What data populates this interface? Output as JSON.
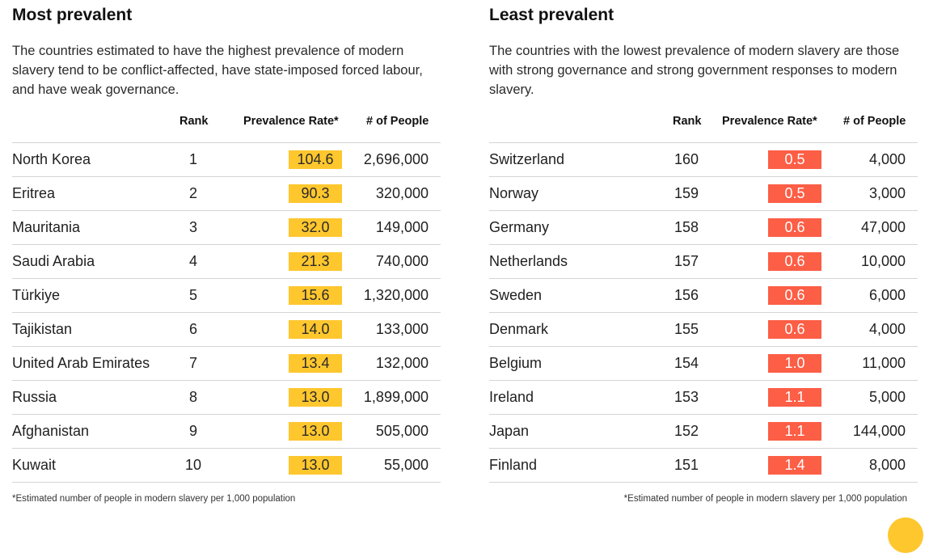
{
  "left_panel": {
    "title": "Most prevalent",
    "description": "The countries estimated to have the highest prevalence of modern slavery tend to be conflict-affected, have state-imposed forced labour, and have weak governance.",
    "headers": {
      "rank": "Rank",
      "rate": "Prevalence Rate*",
      "people": "# of People"
    },
    "rows": [
      {
        "country": "North Korea",
        "rank": "1",
        "rate": "104.6",
        "people": "2,696,000"
      },
      {
        "country": "Eritrea",
        "rank": "2",
        "rate": "90.3",
        "people": "320,000"
      },
      {
        "country": "Mauritania",
        "rank": "3",
        "rate": "32.0",
        "people": "149,000"
      },
      {
        "country": "Saudi Arabia",
        "rank": "4",
        "rate": "21.3",
        "people": "740,000"
      },
      {
        "country": "Türkiye",
        "rank": "5",
        "rate": "15.6",
        "people": "1,320,000"
      },
      {
        "country": "Tajikistan",
        "rank": "6",
        "rate": "14.0",
        "people": "133,000"
      },
      {
        "country": "United Arab Emirates",
        "rank": "7",
        "rate": "13.4",
        "people": "132,000"
      },
      {
        "country": "Russia",
        "rank": "8",
        "rate": "13.0",
        "people": "1,899,000"
      },
      {
        "country": "Afghanistan",
        "rank": "9",
        "rate": "13.0",
        "people": "505,000"
      },
      {
        "country": "Kuwait",
        "rank": "10",
        "rate": "13.0",
        "people": "55,000"
      }
    ],
    "footnote": "*Estimated number of people in modern slavery per 1,000 population",
    "highlight_color": "#fec72e"
  },
  "right_panel": {
    "title": "Least prevalent",
    "description": "The countries with the lowest prevalence of modern slavery are those with strong governance and strong government responses to modern slavery.",
    "headers": {
      "rank": "Rank",
      "rate": "Prevalence Rate*",
      "people": "# of People"
    },
    "rows": [
      {
        "country": "Switzerland",
        "rank": "160",
        "rate": "0.5",
        "people": "4,000"
      },
      {
        "country": "Norway",
        "rank": "159",
        "rate": "0.5",
        "people": "3,000"
      },
      {
        "country": "Germany",
        "rank": "158",
        "rate": "0.6",
        "people": "47,000"
      },
      {
        "country": "Netherlands",
        "rank": "157",
        "rate": "0.6",
        "people": "10,000"
      },
      {
        "country": "Sweden",
        "rank": "156",
        "rate": "0.6",
        "people": "6,000"
      },
      {
        "country": "Denmark",
        "rank": "155",
        "rate": "0.6",
        "people": "4,000"
      },
      {
        "country": "Belgium",
        "rank": "154",
        "rate": "1.0",
        "people": "11,000"
      },
      {
        "country": "Ireland",
        "rank": "153",
        "rate": "1.1",
        "people": "5,000"
      },
      {
        "country": "Japan",
        "rank": "152",
        "rate": "1.1",
        "people": "144,000"
      },
      {
        "country": "Finland",
        "rank": "151",
        "rate": "1.4",
        "people": "8,000"
      }
    ],
    "footnote": "*Estimated number of people in modern slavery per 1,000 population",
    "highlight_color": "#fc5e46"
  }
}
